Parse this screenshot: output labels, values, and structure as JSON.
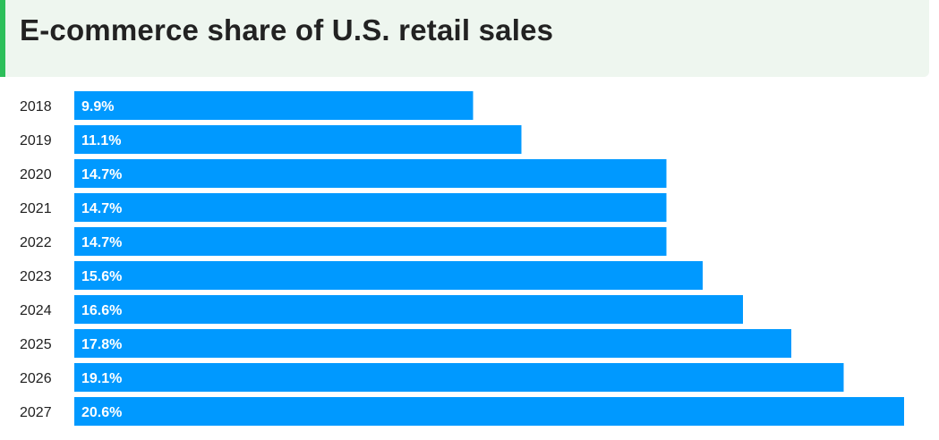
{
  "header": {
    "title": "E-commerce share of U.S. retail sales"
  },
  "colors": {
    "bar": "#0099ff",
    "header_bg": "#eef6ef",
    "accent": "#2dbf5a"
  },
  "chart_data": {
    "type": "bar",
    "orientation": "horizontal",
    "title": "E-commerce share of U.S. retail sales",
    "categories": [
      "2018",
      "2019",
      "2020",
      "2021",
      "2022",
      "2023",
      "2024",
      "2025",
      "2026",
      "2027"
    ],
    "values": [
      9.9,
      11.1,
      14.7,
      14.7,
      14.7,
      15.6,
      16.6,
      17.8,
      19.1,
      20.6
    ],
    "value_labels": [
      "9.9%",
      "11.1%",
      "14.7%",
      "14.7%",
      "14.7%",
      "15.6%",
      "16.6%",
      "17.8%",
      "19.1%",
      "20.6%"
    ],
    "xlim": [
      0,
      20.6
    ],
    "grid": false,
    "legend": "none"
  }
}
